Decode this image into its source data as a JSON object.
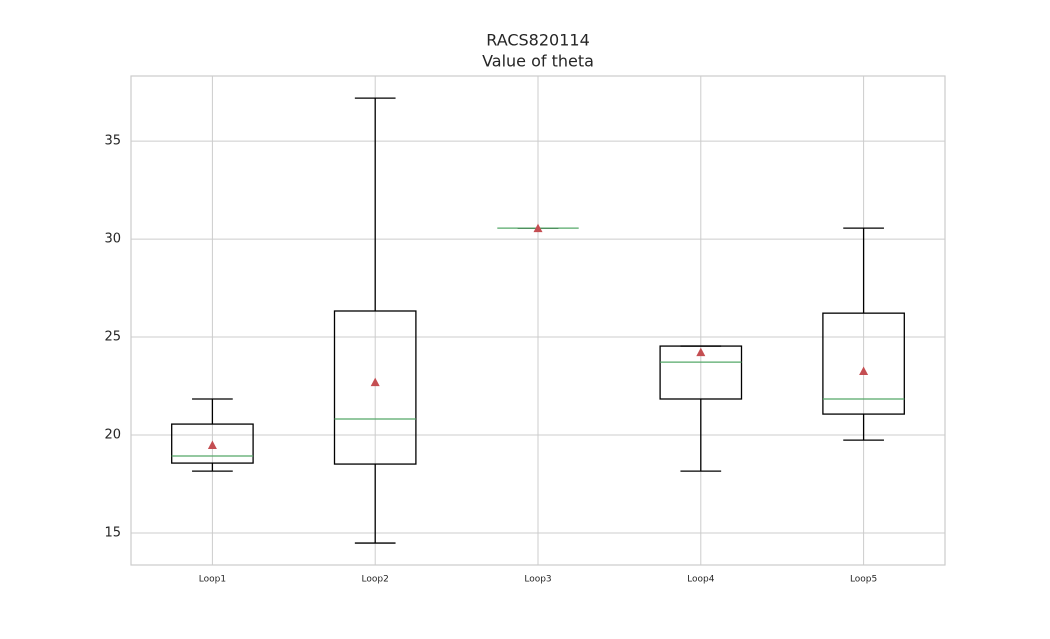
{
  "chart_data": {
    "type": "box",
    "title": "RACS820114",
    "subtitle": "Value of theta",
    "categories": [
      "Loop1",
      "Loop2",
      "Loop3",
      "Loop4",
      "Loop5"
    ],
    "boxes": [
      {
        "whislo": 18.16,
        "q1": 18.57,
        "med": 18.93,
        "q3": 20.56,
        "whishi": 21.84,
        "mean": 19.49
      },
      {
        "whislo": 14.49,
        "q1": 18.52,
        "med": 20.82,
        "q3": 26.33,
        "whishi": 37.19,
        "mean": 22.7
      },
      {
        "whislo": 30.56,
        "q1": 30.56,
        "med": 30.56,
        "q3": 30.56,
        "whishi": 30.56,
        "mean": 30.56
      },
      {
        "whislo": 18.16,
        "q1": 21.84,
        "med": 23.72,
        "q3": 24.54,
        "whishi": 24.54,
        "mean": 24.23
      },
      {
        "whislo": 19.74,
        "q1": 21.07,
        "med": 21.84,
        "q3": 26.22,
        "whishi": 30.56,
        "mean": 23.27
      }
    ],
    "ylim": [
      13.37,
      38.32
    ],
    "yticks": [
      15,
      20,
      25,
      30,
      35
    ],
    "grid": true,
    "box_color": "#000000",
    "median_color": "#55a868",
    "mean_color": "#c44e52"
  }
}
